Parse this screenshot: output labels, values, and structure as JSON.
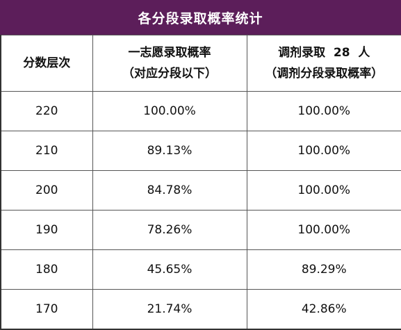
{
  "title": "各分段录取概率统计",
  "headers": {
    "col1": "分数层次",
    "col2_line1": "一志愿录取概率",
    "col2_line2": "（对应分段以下）",
    "col3_line1": "调剂录取  28  人",
    "col3_line2": "（调剂分段录取概率）"
  },
  "rows": [
    {
      "score": "220",
      "first_choice": "100.00%",
      "adjustment": "100.00%"
    },
    {
      "score": "210",
      "first_choice": "89.13%",
      "adjustment": "100.00%"
    },
    {
      "score": "200",
      "first_choice": "84.78%",
      "adjustment": "100.00%"
    },
    {
      "score": "190",
      "first_choice": "78.26%",
      "adjustment": "100.00%"
    },
    {
      "score": "180",
      "first_choice": "45.65%",
      "adjustment": "89.29%"
    },
    {
      "score": "170",
      "first_choice": "21.74%",
      "adjustment": "42.86%"
    }
  ]
}
